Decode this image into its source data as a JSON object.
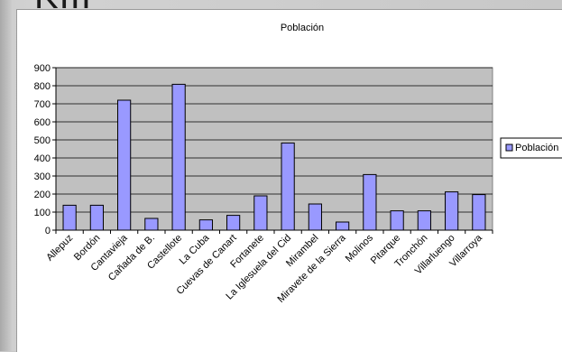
{
  "slide": {
    "heading_fragment": "KIII"
  },
  "chart_data": {
    "type": "bar",
    "title": "Población",
    "xlabel": "",
    "ylabel": "",
    "categories": [
      "Allepuz",
      "Bordón",
      "Cantavieja",
      "Cañada de B.",
      "Castellote",
      "La Cuba",
      "Cuevas de Canart",
      "Fortanete",
      "La Iglesuela del Cid",
      "Mirambel",
      "Miravete de la Sierra",
      "Molinos",
      "Pitarque",
      "Tronchón",
      "Villarluengo",
      "Villarroya"
    ],
    "series": [
      {
        "name": "Población",
        "values": [
          138,
          138,
          720,
          65,
          808,
          57,
          82,
          190,
          483,
          145,
          45,
          308,
          107,
          107,
          212,
          197
        ]
      }
    ],
    "ylim": [
      0,
      900
    ],
    "yticks": [
      0,
      100,
      200,
      300,
      400,
      500,
      600,
      700,
      800,
      900
    ],
    "grid": true,
    "legend_position": "right",
    "colors": {
      "bar_fill": "#9999ff",
      "bar_stroke": "#000000",
      "plot_bg": "#c0c0c0"
    }
  }
}
